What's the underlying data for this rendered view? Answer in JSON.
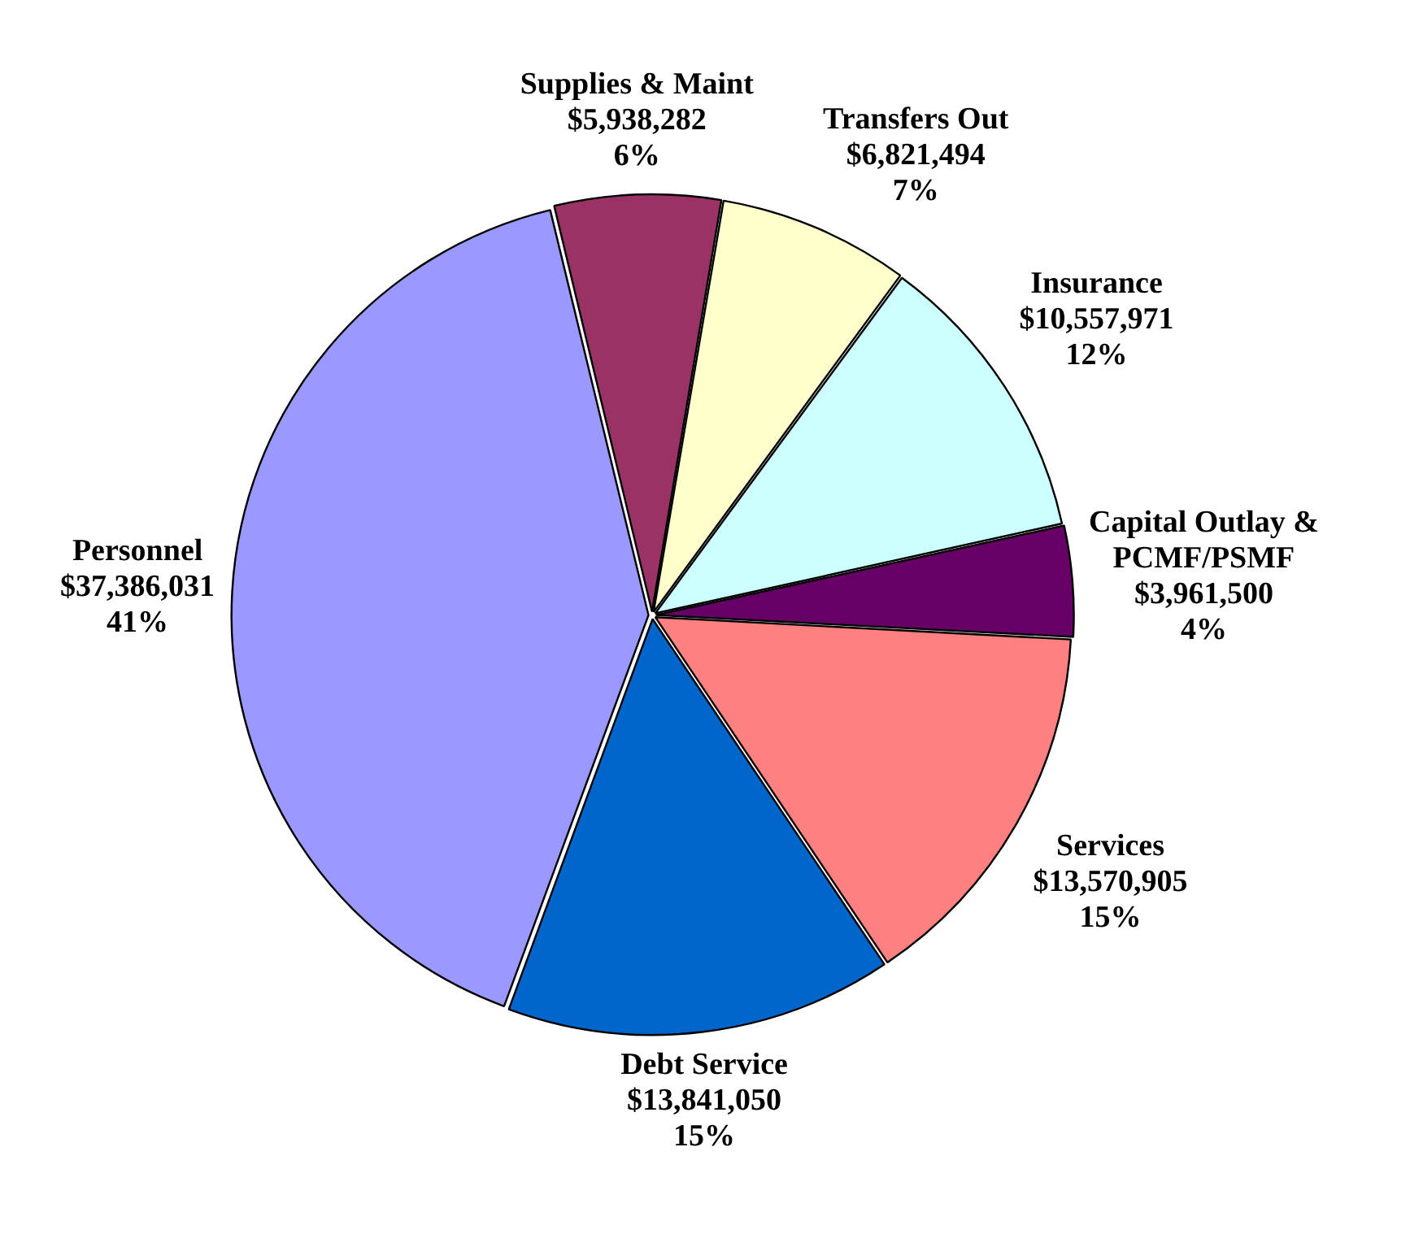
{
  "chart_data": {
    "type": "pie",
    "categories": [
      "Supplies & Maint",
      "Transfers Out",
      "Insurance",
      "Capital Outlay & PCMF/PSMF",
      "Services",
      "Debt Service",
      "Personnel"
    ],
    "values": [
      5938282,
      6821494,
      10557971,
      3961500,
      13570905,
      13841050,
      37386031
    ],
    "value_labels": [
      "$5,938,282\n6%",
      "$6,821,494\n7%",
      "$10,557,971\n12%",
      "$3,961,500\n4%",
      "$13,570,905\n15%",
      "$13,841,050\n15%",
      "$37,386,031\n41%"
    ],
    "colors": [
      "#993366",
      "#ffffcc",
      "#ccffff",
      "#660066",
      "#ff8080",
      "#0066cc",
      "#9999ff"
    ],
    "legend": false
  }
}
